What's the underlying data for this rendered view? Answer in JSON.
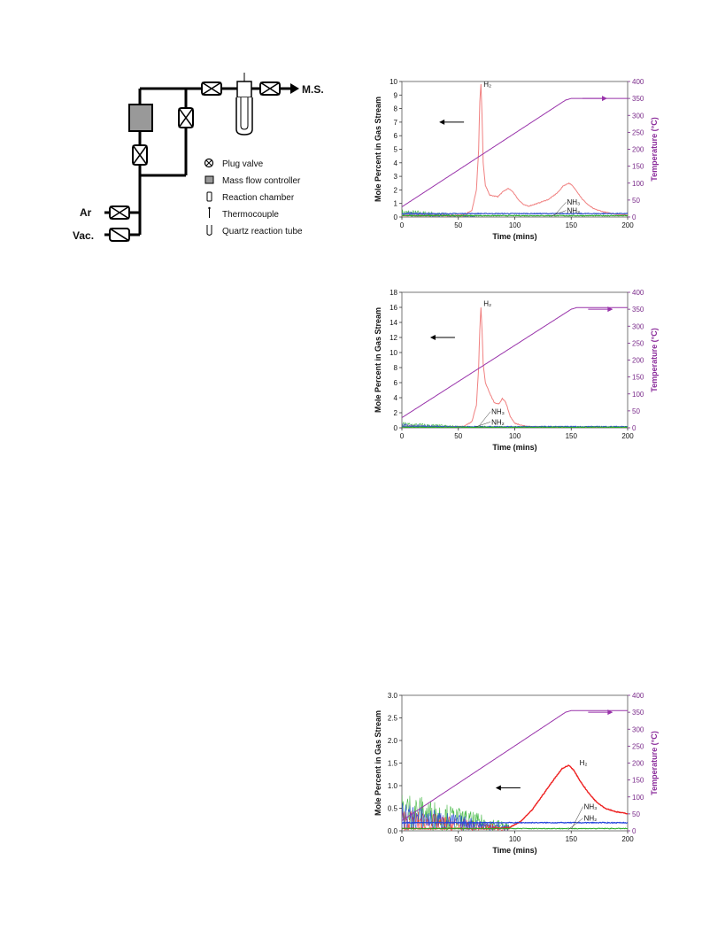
{
  "schematic": {
    "ports": {
      "ms": "M.S.",
      "ar": "Ar",
      "vac": "Vac."
    },
    "legend": [
      {
        "icon": "plug-valve-icon",
        "label": "Plug valve"
      },
      {
        "icon": "mass-flow-controller-icon",
        "label": "Mass flow controller"
      },
      {
        "icon": "reaction-chamber-icon",
        "label": "Reaction chamber"
      },
      {
        "icon": "thermocouple-icon",
        "label": "Thermocouple"
      },
      {
        "icon": "quartz-tube-icon",
        "label": "Quartz reaction tube"
      }
    ]
  },
  "chart_data": [
    {
      "type": "line",
      "xlabel": "Time (mins)",
      "ylabel": "Mole Percent in Gas Stream",
      "y2label": "Temperature (°C)",
      "xlim": [
        0,
        200
      ],
      "xticks": [
        0,
        50,
        100,
        150,
        200
      ],
      "ylim": [
        0,
        10
      ],
      "yticks": [
        0,
        1,
        2,
        3,
        4,
        5,
        6,
        7,
        8,
        9,
        10
      ],
      "y2lim": [
        0,
        400
      ],
      "y2ticks": [
        0,
        50,
        100,
        150,
        200,
        250,
        300,
        350,
        400
      ],
      "ytick_format": "int",
      "colors": {
        "h2": "#f08080",
        "nh3": "#3355cc",
        "n2": "#22aa22",
        "temp": "#9933aa"
      },
      "annotations": {
        "h2": "H₂",
        "nh3": "NH₃",
        "nh2": "NH₂"
      },
      "series": [
        {
          "name": "H₂",
          "axis": "left",
          "x": [
            0,
            20,
            40,
            55,
            62,
            66,
            68,
            69,
            70,
            71,
            72,
            74,
            78,
            85,
            90,
            94,
            98,
            103,
            108,
            112,
            120,
            130,
            138,
            143,
            148,
            150,
            155,
            160,
            165,
            170,
            180,
            190,
            200
          ],
          "y": [
            0.1,
            0.1,
            0.1,
            0.15,
            0.5,
            2.0,
            5.0,
            8.5,
            9.8,
            7.5,
            4.0,
            2.3,
            1.6,
            1.5,
            1.9,
            2.1,
            1.9,
            1.3,
            0.9,
            0.8,
            1.0,
            1.3,
            1.8,
            2.3,
            2.5,
            2.4,
            1.9,
            1.3,
            0.9,
            0.6,
            0.35,
            0.2,
            0.15
          ]
        },
        {
          "name": "NH₃",
          "axis": "left",
          "x": [
            0,
            50,
            100,
            150,
            200
          ],
          "y": [
            0.25,
            0.25,
            0.25,
            0.25,
            0.25
          ]
        },
        {
          "name": "NH₂",
          "axis": "left",
          "x": [
            0,
            50,
            100,
            150,
            200
          ],
          "y": [
            0.1,
            0.1,
            0.1,
            0.1,
            0.1
          ]
        },
        {
          "name": "Temperature",
          "axis": "right",
          "x": [
            0,
            145,
            150,
            200
          ],
          "y": [
            30,
            345,
            350,
            350
          ]
        }
      ],
      "noise": {
        "until": 65,
        "level": 0.6
      },
      "labels": {
        "h2": {
          "x": 70,
          "y": 9.6
        },
        "nh3": {
          "x": 140,
          "y": 0.9
        },
        "nh2": {
          "x": 140,
          "y": 0.55
        }
      },
      "arrows": {
        "left": {
          "x": 55,
          "y": 7
        },
        "right": {
          "x": 160,
          "y": 350
        }
      }
    },
    {
      "type": "line",
      "xlabel": "Time (mins)",
      "ylabel": "Mole Percent in Gas Stream",
      "y2label": "Temperature (°C)",
      "xlim": [
        0,
        200
      ],
      "xticks": [
        0,
        50,
        100,
        150,
        200
      ],
      "ylim": [
        0,
        18
      ],
      "yticks": [
        0,
        2,
        4,
        6,
        8,
        10,
        12,
        14,
        16,
        18
      ],
      "y2lim": [
        0,
        400
      ],
      "y2ticks": [
        0,
        50,
        100,
        150,
        200,
        250,
        300,
        350,
        400
      ],
      "ytick_format": "int",
      "colors": {
        "h2": "#f08080",
        "nh3": "#3355cc",
        "n2": "#22aa22",
        "temp": "#9933aa"
      },
      "annotations": {
        "h2": "H₂",
        "nh3": "NH₃",
        "nh2": "NH₂"
      },
      "series": [
        {
          "name": "H₂",
          "axis": "left",
          "x": [
            0,
            40,
            55,
            62,
            66,
            68,
            69,
            70,
            71,
            72,
            74,
            78,
            82,
            86,
            89,
            92,
            96,
            100,
            110,
            130,
            160,
            200
          ],
          "y": [
            0.1,
            0.1,
            0.2,
            0.8,
            3.0,
            8.0,
            13.0,
            16.0,
            13.0,
            8.5,
            6.0,
            4.5,
            3.3,
            3.2,
            3.9,
            3.4,
            1.5,
            0.6,
            0.2,
            0.1,
            0.05,
            0.05
          ]
        },
        {
          "name": "NH₃",
          "axis": "left",
          "x": [
            0,
            50,
            100,
            150,
            200
          ],
          "y": [
            0.15,
            0.15,
            0.15,
            0.15,
            0.15
          ]
        },
        {
          "name": "NH₂",
          "axis": "left",
          "x": [
            0,
            50,
            100,
            150,
            200
          ],
          "y": [
            0.08,
            0.08,
            0.08,
            0.08,
            0.08
          ]
        },
        {
          "name": "Temperature",
          "axis": "right",
          "x": [
            0,
            150,
            155,
            200
          ],
          "y": [
            30,
            350,
            355,
            355
          ]
        }
      ],
      "noise": {
        "until": 60,
        "level": 0.8
      },
      "labels": {
        "h2": {
          "x": 70,
          "y": 16.2
        },
        "nh3": {
          "x": 73,
          "y": 1.8
        },
        "nh2": {
          "x": 73,
          "y": 0.9
        }
      },
      "arrows": {
        "left": {
          "x": 47,
          "y": 12
        },
        "right": {
          "x": 165,
          "y": 350
        }
      }
    },
    {
      "type": "line",
      "xlabel": "Time (mins)",
      "ylabel": "Mole Percent in Gas Stream",
      "y2label": "Temperature (°C)",
      "xlim": [
        0,
        200
      ],
      "xticks": [
        0,
        50,
        100,
        150,
        200
      ],
      "ylim": [
        0,
        3.0
      ],
      "yticks": [
        0.0,
        0.5,
        1.0,
        1.5,
        2.0,
        2.5,
        3.0
      ],
      "y2lim": [
        0,
        400
      ],
      "y2ticks": [
        0,
        50,
        100,
        150,
        200,
        250,
        300,
        350,
        400
      ],
      "ytick_format": "1dp",
      "colors": {
        "h2": "#ee2222",
        "nh3": "#2244dd",
        "n2": "#22aa22",
        "temp": "#9933aa"
      },
      "annotations": {
        "h2": "H₂",
        "nh3": "NH₃",
        "nh2": "NH₂"
      },
      "series": [
        {
          "name": "H₂",
          "axis": "left",
          "x": [
            0,
            80,
            95,
            105,
            115,
            125,
            135,
            142,
            148,
            152,
            158,
            165,
            172,
            180,
            190,
            200
          ],
          "y": [
            0.05,
            0.05,
            0.07,
            0.2,
            0.45,
            0.8,
            1.15,
            1.38,
            1.45,
            1.35,
            1.1,
            0.85,
            0.65,
            0.5,
            0.42,
            0.38
          ]
        },
        {
          "name": "NH₃",
          "axis": "left",
          "x": [
            0,
            50,
            100,
            150,
            200
          ],
          "y": [
            0.18,
            0.18,
            0.18,
            0.18,
            0.18
          ]
        },
        {
          "name": "NH₂",
          "axis": "left",
          "x": [
            0,
            100,
            150,
            200
          ],
          "y": [
            0.05,
            0.05,
            0.05,
            0.05
          ]
        },
        {
          "name": "Temperature",
          "axis": "right",
          "x": [
            0,
            145,
            150,
            200
          ],
          "y": [
            30,
            350,
            355,
            355
          ]
        }
      ],
      "noise": {
        "until": 95,
        "level": 0.9
      },
      "labels": {
        "h2": {
          "x": 155,
          "y": 1.45
        },
        "nh3": {
          "x": 155,
          "y": 0.48
        },
        "nh2": {
          "x": 155,
          "y": 0.3
        }
      },
      "arrows": {
        "left": {
          "x": 105,
          "y": 0.95
        },
        "right": {
          "x": 165,
          "y": 350
        }
      }
    }
  ]
}
